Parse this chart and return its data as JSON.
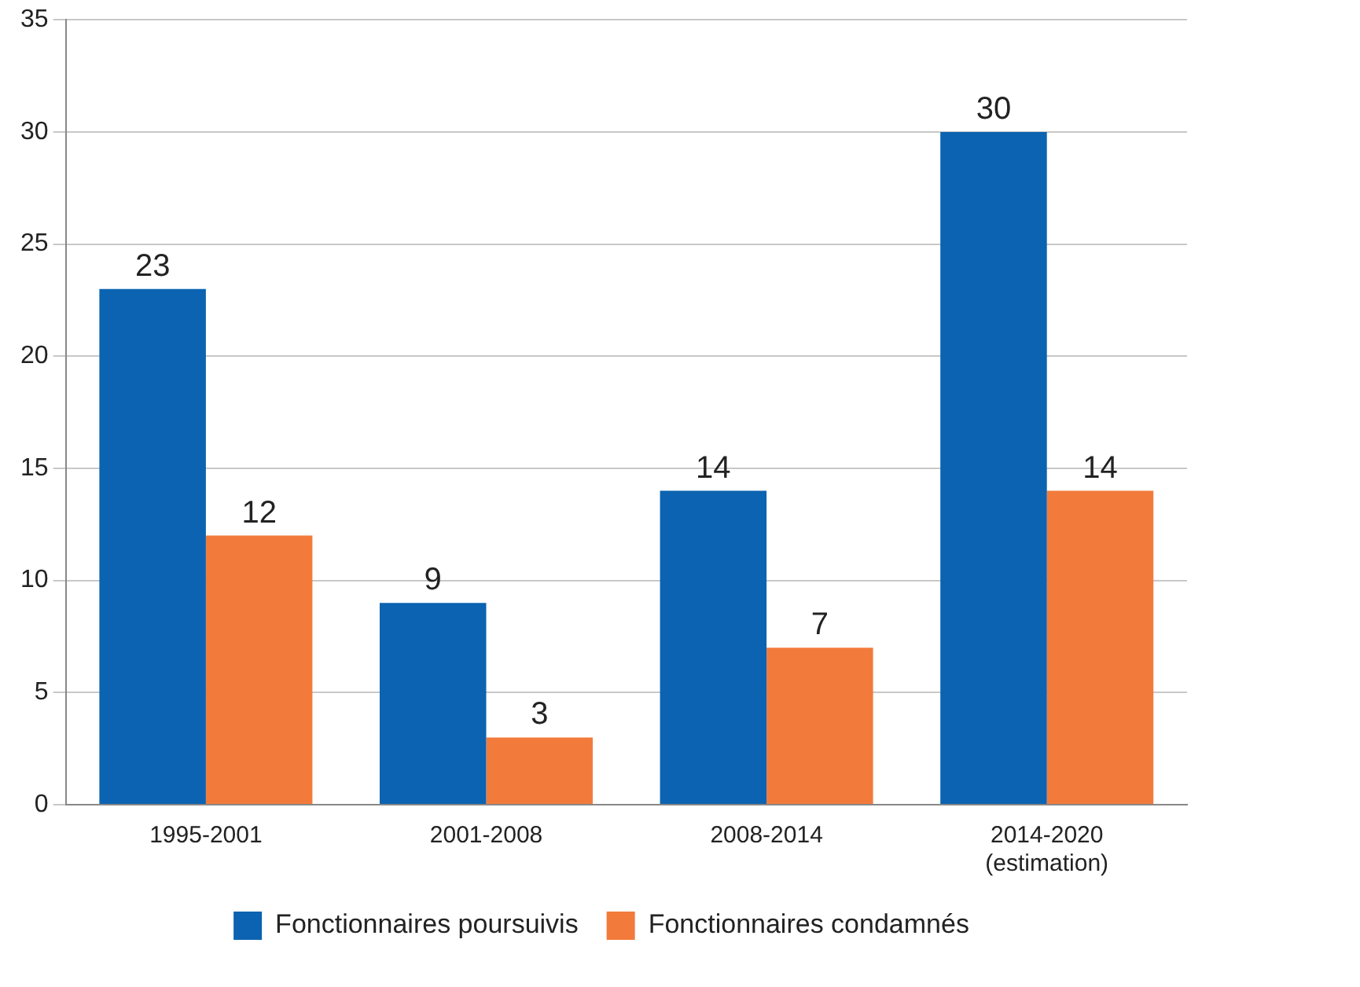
{
  "chart_data": {
    "type": "bar",
    "categories": [
      "1995-2001",
      "2001-2008",
      "2008-2014",
      "2014-2020 (estimation)"
    ],
    "series": [
      {
        "name": "Fonctionnaires poursuivis",
        "color": "#0b63b1",
        "values": [
          23,
          9,
          14,
          30
        ]
      },
      {
        "name": "Fonctionnaires condamnés",
        "color": "#f27b3b",
        "values": [
          12,
          3,
          7,
          14
        ]
      }
    ],
    "ylim": [
      0,
      35
    ],
    "yticks": [
      0,
      5,
      10,
      15,
      20,
      25,
      30,
      35
    ],
    "grid": "y",
    "legend": "bottom",
    "data_labels": true
  }
}
